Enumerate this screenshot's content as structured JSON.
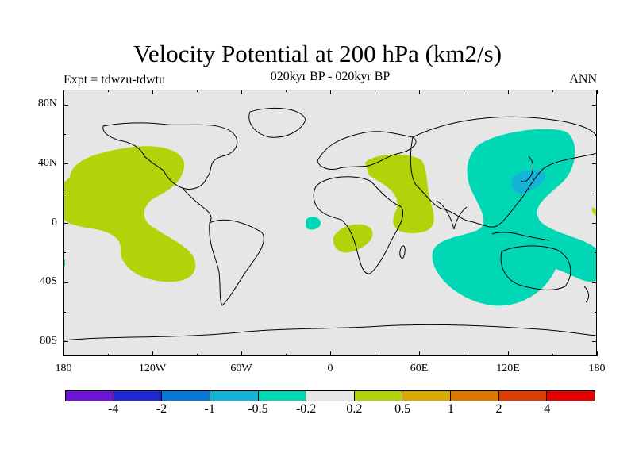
{
  "title": "Velocity Potential at 200 hPa (km2/s)",
  "subtitle": "020kyr BP - 020kyr BP",
  "experiment": "Expt = tdwzu-tdwtu",
  "season": "ANN",
  "colors": {
    "background": "#ffffff",
    "ocean_land_fill": "#e6e6e6",
    "coastline": "#000000",
    "positive_light": "#b4d20a",
    "negative_light": "#00d7b4",
    "negative_medium": "#14b4d8"
  },
  "lat_labels": [
    "80N",
    "40N",
    "0",
    "40S",
    "80S"
  ],
  "lon_labels": [
    "180",
    "120W",
    "60W",
    "0",
    "60E",
    "120E",
    "180"
  ],
  "colorbar": {
    "colors": [
      "#6e14d8",
      "#1e28d2",
      "#0a78d8",
      "#14b4d8",
      "#00d7b4",
      "#e6e6e6",
      "#b4d20a",
      "#d7aa00",
      "#dc7800",
      "#dc3c00",
      "#e60000"
    ],
    "labels": [
      "-4",
      "-2",
      "-1",
      "-0.5",
      "-0.2",
      "0.2",
      "0.5",
      "1",
      "2",
      "4"
    ]
  }
}
